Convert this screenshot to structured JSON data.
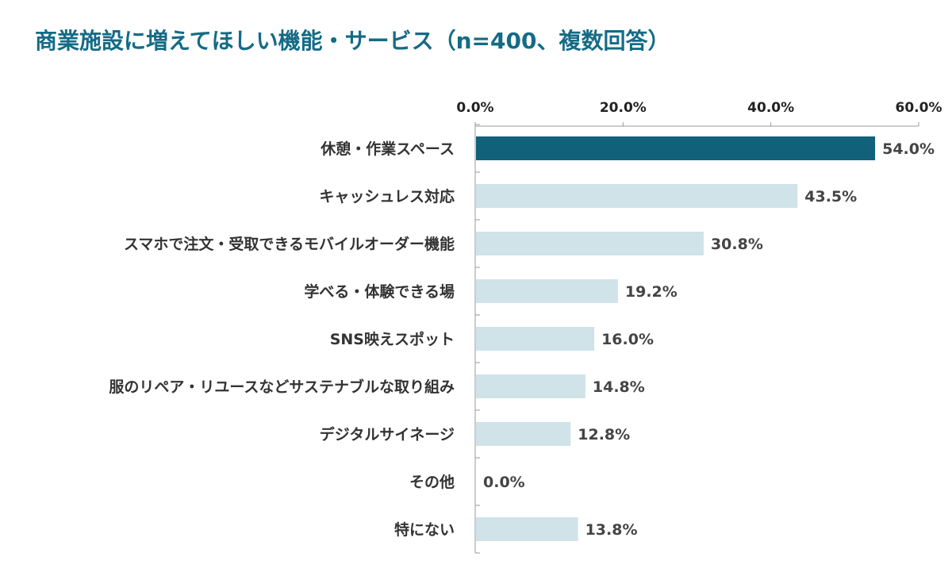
{
  "chart_data": {
    "type": "bar",
    "orientation": "horizontal",
    "title": "商業施設に増えてほしい機能・サービス（n=400、複数回答）",
    "xlim": [
      0,
      60
    ],
    "x_tick_labels": [
      "0.0%",
      "20.0%",
      "40.0%",
      "60.0%"
    ],
    "x_ticks": [
      0,
      20,
      40,
      60
    ],
    "categories": [
      "休憩・作業スペース",
      "キャッシュレス対応",
      "スマホで注文・受取できるモバイルオーダー機能",
      "学べる・体験できる場",
      "SNS映えスポット",
      "服のリペア・リユースなどサステナブルな取り組み",
      "デジタルサイネージ",
      "その他",
      "特にない"
    ],
    "values": [
      54.0,
      43.5,
      30.8,
      19.2,
      16.0,
      14.8,
      12.8,
      0.0,
      13.8
    ],
    "value_labels": [
      "54.0%",
      "43.5%",
      "30.8%",
      "19.2%",
      "16.0%",
      "14.8%",
      "12.8%",
      "0.0%",
      "13.8%"
    ],
    "highlight_index": 0,
    "colors": {
      "highlight": "#11617b",
      "bar": "#cfe3e8",
      "title": "#146b86",
      "axis": "#999999"
    },
    "grid": false,
    "axis_position": "top"
  }
}
